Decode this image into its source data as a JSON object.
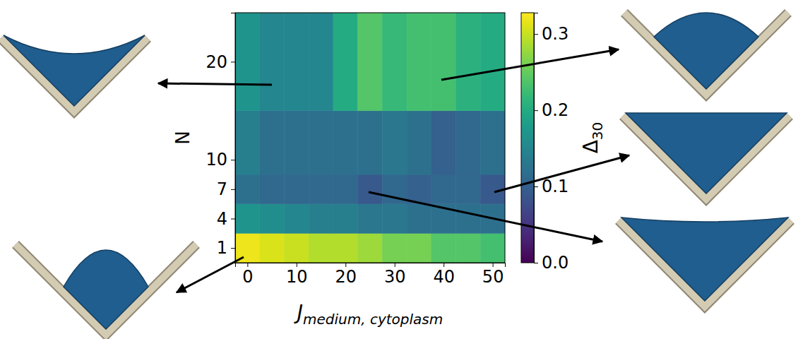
{
  "chart_data": {
    "type": "heatmap",
    "xlabel": {
      "main": "J",
      "sub": "medium, cytoplasm"
    },
    "ylabel": "N",
    "xlim": [
      -2.5,
      52.5
    ],
    "ylim": [
      -0.5,
      25
    ],
    "xticks": [
      0,
      10,
      20,
      30,
      40,
      50
    ],
    "yticks": [
      1,
      4,
      7,
      10,
      20
    ],
    "x_edges": [
      -2.5,
      2.5,
      7.5,
      12.5,
      17.5,
      22.5,
      27.5,
      32.5,
      37.5,
      42.5,
      47.5,
      52.5
    ],
    "y_edges": [
      -0.5,
      2.5,
      5.5,
      8.5,
      15,
      25
    ],
    "z": [
      [
        0.32,
        0.31,
        0.3,
        0.29,
        0.29,
        0.28,
        0.26,
        0.26,
        0.24,
        0.24,
        0.23
      ],
      [
        0.17,
        0.16,
        0.15,
        0.14,
        0.14,
        0.13,
        0.13,
        0.12,
        0.12,
        0.12,
        0.12
      ],
      [
        0.12,
        0.11,
        0.11,
        0.11,
        0.11,
        0.09,
        0.11,
        0.1,
        0.11,
        0.11,
        0.09
      ],
      [
        0.14,
        0.12,
        0.12,
        0.12,
        0.12,
        0.12,
        0.13,
        0.12,
        0.1,
        0.11,
        0.12
      ],
      [
        0.17,
        0.15,
        0.15,
        0.15,
        0.2,
        0.24,
        0.22,
        0.23,
        0.23,
        0.21,
        0.2
      ]
    ],
    "color": "viridis",
    "colorbar": {
      "label": {
        "main": "Δ",
        "sub": "30"
      },
      "range": [
        0,
        0.328
      ],
      "ticks": [
        {
          "value": 0,
          "label": "0.0"
        },
        0.1,
        0.2,
        0.3
      ]
    }
  }
}
